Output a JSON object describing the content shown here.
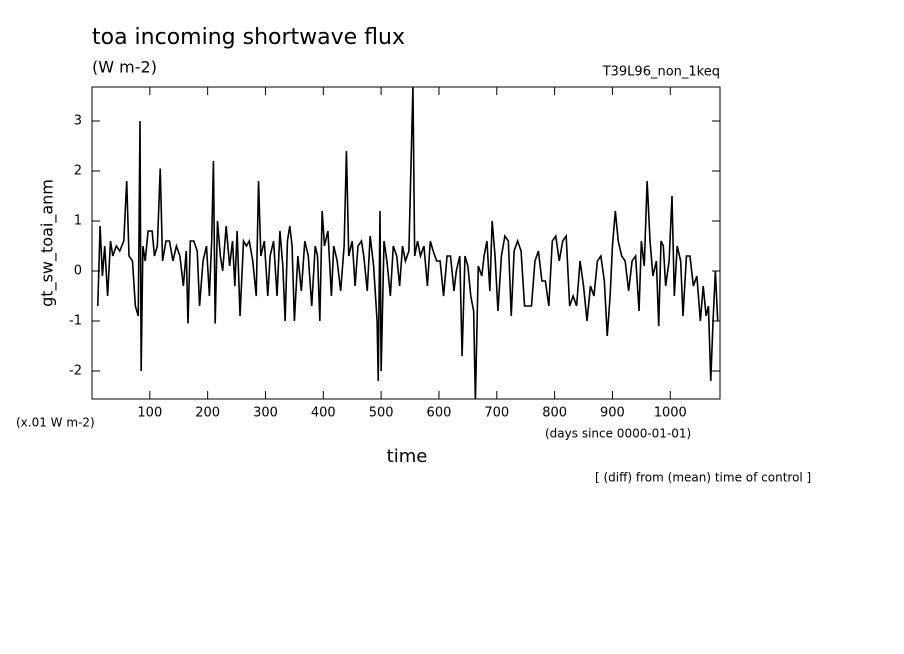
{
  "chart_data": {
    "type": "line",
    "title": "toa incoming shortwave flux",
    "subtitle": "(W m-2)",
    "experiment": "T39L96_non_1keq",
    "y_label": "gt_sw_toai_anm",
    "y_unit_note": "(x.01 W m-2)",
    "x_unit_note": "(days since 0000-01-01)",
    "x_label": "time",
    "footnote": "[ (diff) from (mean) time of control ]",
    "xlim": [
      0,
      1086
    ],
    "ylim": [
      -2.56,
      3.68
    ],
    "xticks": [
      100,
      200,
      300,
      400,
      500,
      600,
      700,
      800,
      900,
      1000
    ],
    "yticks": [
      -2,
      -1,
      0,
      1,
      2,
      3
    ],
    "x": [
      10,
      14,
      18,
      22,
      27,
      32,
      36,
      42,
      48,
      55,
      60,
      64,
      70,
      75,
      80,
      83,
      85,
      88,
      92,
      97,
      104,
      108,
      113,
      118,
      122,
      128,
      134,
      140,
      146,
      152,
      158,
      163,
      166,
      170,
      176,
      182,
      186,
      192,
      198,
      203,
      207,
      210,
      213,
      217,
      222,
      226,
      232,
      238,
      243,
      247,
      251,
      256,
      262,
      267,
      272,
      278,
      284,
      288,
      292,
      298,
      304,
      308,
      314,
      320,
      325,
      330,
      334,
      338,
      342,
      346,
      350,
      356,
      362,
      368,
      374,
      380,
      386,
      390,
      394,
      398,
      402,
      408,
      414,
      418,
      424,
      430,
      436,
      440,
      444,
      450,
      455,
      460,
      466,
      470,
      476,
      481,
      487,
      493,
      495,
      498,
      500,
      505,
      510,
      516,
      521,
      527,
      532,
      537,
      542,
      548,
      555,
      558,
      563,
      568,
      574,
      580,
      585,
      590,
      596,
      602,
      608,
      614,
      620,
      626,
      630,
      636,
      640,
      645,
      650,
      655,
      660,
      663,
      668,
      674,
      678,
      683,
      688,
      692,
      697,
      702,
      708,
      714,
      720,
      725,
      730,
      736,
      742,
      748,
      754,
      760,
      766,
      772,
      778,
      784,
      790,
      796,
      802,
      808,
      814,
      820,
      826,
      832,
      838,
      844,
      850,
      856,
      862,
      868,
      874,
      880,
      886,
      891,
      896,
      900,
      905,
      910,
      916,
      922,
      928,
      934,
      940,
      946,
      950,
      955,
      960,
      965,
      970,
      976,
      980,
      984,
      988,
      992,
      998,
      1003,
      1007,
      1012,
      1018,
      1022,
      1028,
      1034,
      1040,
      1046,
      1052,
      1057,
      1062,
      1066,
      1070,
      1074,
      1078,
      1082
    ],
    "series": [
      {
        "name": "gt_sw_toai_anm",
        "color": "#000000",
        "values": [
          -0.7,
          0.9,
          -0.1,
          0.5,
          -0.5,
          0.6,
          0.3,
          0.5,
          0.4,
          0.6,
          1.8,
          0.3,
          0.2,
          -0.7,
          -0.9,
          3.0,
          -2.0,
          0.5,
          0.2,
          0.8,
          0.8,
          0.3,
          0.5,
          2.05,
          0.2,
          0.6,
          0.6,
          0.2,
          0.5,
          0.3,
          -0.3,
          0.4,
          -1.05,
          0.6,
          0.6,
          0.4,
          -0.7,
          0.2,
          0.5,
          -0.5,
          0.6,
          2.2,
          -1.05,
          1.0,
          0.3,
          0.0,
          0.9,
          0.1,
          0.6,
          -0.3,
          0.8,
          -0.9,
          0.6,
          0.5,
          0.6,
          0.2,
          -0.5,
          1.8,
          0.3,
          0.6,
          -0.5,
          0.3,
          0.6,
          -0.5,
          0.8,
          0.1,
          -1.0,
          0.6,
          0.9,
          0.5,
          -1.0,
          0.3,
          -0.4,
          0.6,
          0.3,
          -0.7,
          0.5,
          0.3,
          -1.0,
          1.2,
          0.5,
          0.8,
          -0.5,
          0.5,
          0.2,
          -0.4,
          0.5,
          2.4,
          0.3,
          0.6,
          -0.3,
          0.5,
          0.6,
          0.3,
          -0.4,
          0.7,
          0.1,
          -1.0,
          -2.2,
          1.2,
          -2.0,
          0.6,
          0.2,
          -0.5,
          0.5,
          0.3,
          -0.3,
          0.5,
          0.2,
          0.4,
          3.7,
          0.3,
          0.6,
          0.3,
          0.5,
          -0.3,
          0.6,
          0.4,
          0.2,
          0.2,
          -0.5,
          0.3,
          0.3,
          -0.4,
          0.0,
          0.3,
          -1.7,
          0.3,
          0.1,
          -0.5,
          -0.8,
          -2.6,
          0.1,
          -0.1,
          0.3,
          0.6,
          -0.4,
          1.0,
          0.3,
          -0.8,
          0.3,
          0.7,
          0.6,
          -0.9,
          0.4,
          0.6,
          0.4,
          -0.7,
          -0.7,
          -0.7,
          0.2,
          0.4,
          -0.2,
          -0.2,
          -0.7,
          0.6,
          0.7,
          0.2,
          0.6,
          0.7,
          -0.7,
          -0.5,
          -0.7,
          0.2,
          -0.3,
          -1.0,
          -0.3,
          -0.5,
          0.2,
          0.3,
          -0.2,
          -1.3,
          -0.5,
          0.5,
          1.2,
          0.6,
          0.3,
          0.2,
          -0.4,
          0.2,
          0.3,
          -0.8,
          0.6,
          0.1,
          1.8,
          0.6,
          -0.1,
          0.2,
          -1.1,
          0.6,
          0.5,
          -0.3,
          0.2,
          1.5,
          -0.5,
          0.5,
          0.2,
          -0.9,
          0.3,
          0.3,
          -0.3,
          -0.1,
          -1.0,
          -0.3,
          -0.9,
          -0.7,
          -2.2,
          -1.0,
          0.0,
          -1.0
        ]
      }
    ]
  }
}
